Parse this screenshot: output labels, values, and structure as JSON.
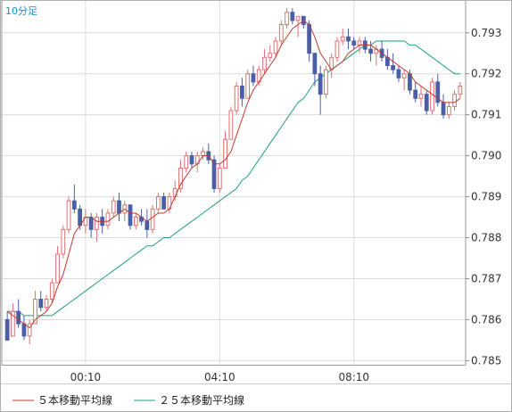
{
  "chart_data": {
    "type": "candlestick",
    "timeframe": "10分足",
    "x_tick_labels": [
      "00:10",
      "04:10",
      "08:10"
    ],
    "y_ticks": [
      0.785,
      0.786,
      0.787,
      0.788,
      0.789,
      0.79,
      0.791,
      0.792,
      0.793
    ],
    "y_tick_labels": [
      "0.785",
      "0.786",
      "0.787",
      "0.788",
      "0.789",
      "0.790",
      "0.791",
      "0.792",
      "0.793"
    ],
    "ylim": [
      0.7849,
      0.7938
    ],
    "grid": true,
    "legend_position": "bottom-left",
    "candle_colors": {
      "up": "#e07070",
      "down": "#4a5fa8"
    },
    "series": [
      {
        "name": "５本移動平均線",
        "color": "#c0392b",
        "line": "ma5"
      },
      {
        "name": "２５本移動平均線",
        "color": "#1e9e7e",
        "line": "ma25"
      }
    ],
    "candles": [
      [
        0.786,
        0.7862,
        0.7855,
        0.7855
      ],
      [
        0.7856,
        0.7864,
        0.7856,
        0.7862
      ],
      [
        0.7862,
        0.7865,
        0.7858,
        0.7859
      ],
      [
        0.7859,
        0.7861,
        0.7855,
        0.7856
      ],
      [
        0.7856,
        0.786,
        0.7854,
        0.7859
      ],
      [
        0.7859,
        0.7867,
        0.7859,
        0.7865
      ],
      [
        0.7865,
        0.7867,
        0.7862,
        0.7863
      ],
      [
        0.7863,
        0.7866,
        0.7862,
        0.7865
      ],
      [
        0.7865,
        0.787,
        0.7864,
        0.7869
      ],
      [
        0.7869,
        0.7878,
        0.7869,
        0.7876
      ],
      [
        0.7876,
        0.7883,
        0.7875,
        0.7882
      ],
      [
        0.7882,
        0.789,
        0.7881,
        0.7889
      ],
      [
        0.7889,
        0.7893,
        0.7886,
        0.7887
      ],
      [
        0.7887,
        0.7888,
        0.7882,
        0.7883
      ],
      [
        0.7883,
        0.7887,
        0.7881,
        0.7885
      ],
      [
        0.7885,
        0.7886,
        0.788,
        0.7882
      ],
      [
        0.7882,
        0.7886,
        0.7879,
        0.7885
      ],
      [
        0.7885,
        0.7887,
        0.7881,
        0.7883
      ],
      [
        0.7883,
        0.7887,
        0.7882,
        0.7886
      ],
      [
        0.7886,
        0.789,
        0.7885,
        0.7889
      ],
      [
        0.7889,
        0.7891,
        0.7884,
        0.7886
      ],
      [
        0.7886,
        0.7889,
        0.7884,
        0.7888
      ],
      [
        0.7888,
        0.7888,
        0.7882,
        0.7883
      ],
      [
        0.7883,
        0.7886,
        0.7882,
        0.7885
      ],
      [
        0.7885,
        0.7887,
        0.7883,
        0.7884
      ],
      [
        0.7884,
        0.7887,
        0.788,
        0.7882
      ],
      [
        0.7882,
        0.7888,
        0.7881,
        0.7887
      ],
      [
        0.7887,
        0.7891,
        0.7886,
        0.789
      ],
      [
        0.789,
        0.7891,
        0.7887,
        0.7887
      ],
      [
        0.7887,
        0.7891,
        0.7886,
        0.789
      ],
      [
        0.789,
        0.7894,
        0.7889,
        0.7892
      ],
      [
        0.7892,
        0.7899,
        0.7891,
        0.7897
      ],
      [
        0.7897,
        0.7901,
        0.7896,
        0.79
      ],
      [
        0.79,
        0.7901,
        0.7897,
        0.7898
      ],
      [
        0.7898,
        0.7901,
        0.7896,
        0.79
      ],
      [
        0.79,
        0.7902,
        0.7899,
        0.7901
      ],
      [
        0.7901,
        0.7903,
        0.7898,
        0.7899
      ],
      [
        0.7899,
        0.79,
        0.7891,
        0.7892
      ],
      [
        0.7892,
        0.7898,
        0.7891,
        0.7897
      ],
      [
        0.7897,
        0.7906,
        0.7897,
        0.7904
      ],
      [
        0.7904,
        0.7912,
        0.7904,
        0.7911
      ],
      [
        0.7911,
        0.7918,
        0.791,
        0.7917
      ],
      [
        0.7917,
        0.7919,
        0.7912,
        0.7914
      ],
      [
        0.7914,
        0.7921,
        0.7914,
        0.792
      ],
      [
        0.792,
        0.7922,
        0.7917,
        0.7918
      ],
      [
        0.7918,
        0.7922,
        0.7917,
        0.7921
      ],
      [
        0.7921,
        0.7926,
        0.792,
        0.7924
      ],
      [
        0.7924,
        0.7927,
        0.7923,
        0.7925
      ],
      [
        0.7925,
        0.7929,
        0.7924,
        0.7928
      ],
      [
        0.7928,
        0.7933,
        0.7927,
        0.7932
      ],
      [
        0.7932,
        0.7936,
        0.7931,
        0.7935
      ],
      [
        0.7935,
        0.7936,
        0.7932,
        0.7933
      ],
      [
        0.7933,
        0.7934,
        0.7929,
        0.7934
      ],
      [
        0.7934,
        0.7934,
        0.7931,
        0.7932
      ],
      [
        0.7932,
        0.7933,
        0.7923,
        0.7925
      ],
      [
        0.7925,
        0.7925,
        0.7917,
        0.792
      ],
      [
        0.792,
        0.7922,
        0.791,
        0.7915
      ],
      [
        0.7915,
        0.7922,
        0.7914,
        0.7921
      ],
      [
        0.7921,
        0.7925,
        0.7919,
        0.7924
      ],
      [
        0.7924,
        0.7929,
        0.7923,
        0.7928
      ],
      [
        0.7928,
        0.7931,
        0.7927,
        0.7929
      ],
      [
        0.7929,
        0.7931,
        0.7926,
        0.7928
      ],
      [
        0.7928,
        0.7929,
        0.7926,
        0.7927
      ],
      [
        0.7927,
        0.7929,
        0.7925,
        0.7928
      ],
      [
        0.7928,
        0.7929,
        0.7925,
        0.7926
      ],
      [
        0.7926,
        0.7928,
        0.7923,
        0.7925
      ],
      [
        0.7925,
        0.7927,
        0.7922,
        0.7926
      ],
      [
        0.7926,
        0.7928,
        0.7923,
        0.7924
      ],
      [
        0.7924,
        0.7926,
        0.7921,
        0.7922
      ],
      [
        0.7922,
        0.7925,
        0.792,
        0.7921
      ],
      [
        0.7921,
        0.7922,
        0.7918,
        0.7919
      ],
      [
        0.7919,
        0.7921,
        0.7916,
        0.792
      ],
      [
        0.792,
        0.7921,
        0.7915,
        0.7916
      ],
      [
        0.7916,
        0.7918,
        0.7913,
        0.7914
      ],
      [
        0.7914,
        0.7917,
        0.7912,
        0.7915
      ],
      [
        0.7915,
        0.7916,
        0.791,
        0.7911
      ],
      [
        0.7911,
        0.7919,
        0.791,
        0.7918
      ],
      [
        0.7918,
        0.792,
        0.7912,
        0.7913
      ],
      [
        0.7913,
        0.7915,
        0.7909,
        0.791
      ],
      [
        0.791,
        0.7913,
        0.7909,
        0.7912
      ],
      [
        0.7912,
        0.7916,
        0.7911,
        0.7915
      ],
      [
        0.7915,
        0.7918,
        0.7914,
        0.7917
      ]
    ],
    "ma5": [
      0.7862,
      0.7861,
      0.786,
      0.7859,
      0.7858,
      0.786,
      0.7861,
      0.7862,
      0.7864,
      0.7868,
      0.7871,
      0.7876,
      0.7881,
      0.7883,
      0.7885,
      0.7885,
      0.7884,
      0.7884,
      0.7884,
      0.7885,
      0.7886,
      0.7887,
      0.7886,
      0.7886,
      0.7885,
      0.7884,
      0.7885,
      0.7886,
      0.7886,
      0.7887,
      0.789,
      0.7893,
      0.7895,
      0.7897,
      0.7898,
      0.79,
      0.79,
      0.7898,
      0.7898,
      0.7899,
      0.7901,
      0.7905,
      0.7909,
      0.7913,
      0.7916,
      0.7918,
      0.792,
      0.7922,
      0.7924,
      0.7927,
      0.7929,
      0.7931,
      0.7932,
      0.7933,
      0.7932,
      0.7929,
      0.7925,
      0.7923,
      0.7921,
      0.7922,
      0.7923,
      0.7925,
      0.7926,
      0.7927,
      0.7927,
      0.7927,
      0.7926,
      0.7925,
      0.7924,
      0.7923,
      0.7922,
      0.7921,
      0.792,
      0.7918,
      0.7917,
      0.7916,
      0.7915,
      0.7914,
      0.7913,
      0.7913,
      0.7913,
      0.7914
    ],
    "ma25": [
      0.7862,
      0.7862,
      0.7862,
      0.7861,
      0.7861,
      0.7861,
      0.7861,
      0.7861,
      0.7861,
      0.7862,
      0.7863,
      0.7864,
      0.7865,
      0.7866,
      0.7867,
      0.7868,
      0.7869,
      0.787,
      0.7871,
      0.7872,
      0.7873,
      0.7874,
      0.7875,
      0.7876,
      0.7877,
      0.7878,
      0.7878,
      0.7879,
      0.788,
      0.788,
      0.7881,
      0.7882,
      0.7883,
      0.7884,
      0.7885,
      0.7886,
      0.7887,
      0.7888,
      0.7889,
      0.789,
      0.7891,
      0.7892,
      0.7894,
      0.7895,
      0.7897,
      0.7899,
      0.7901,
      0.7903,
      0.7905,
      0.7907,
      0.7909,
      0.7911,
      0.7913,
      0.7914,
      0.7916,
      0.7918,
      0.7919,
      0.792,
      0.7921,
      0.7922,
      0.7923,
      0.7924,
      0.7925,
      0.7926,
      0.7927,
      0.7927,
      0.7928,
      0.7928,
      0.7928,
      0.7928,
      0.7928,
      0.7928,
      0.7927,
      0.7927,
      0.7926,
      0.7925,
      0.7924,
      0.7923,
      0.7922,
      0.7921,
      0.792,
      0.792
    ]
  }
}
